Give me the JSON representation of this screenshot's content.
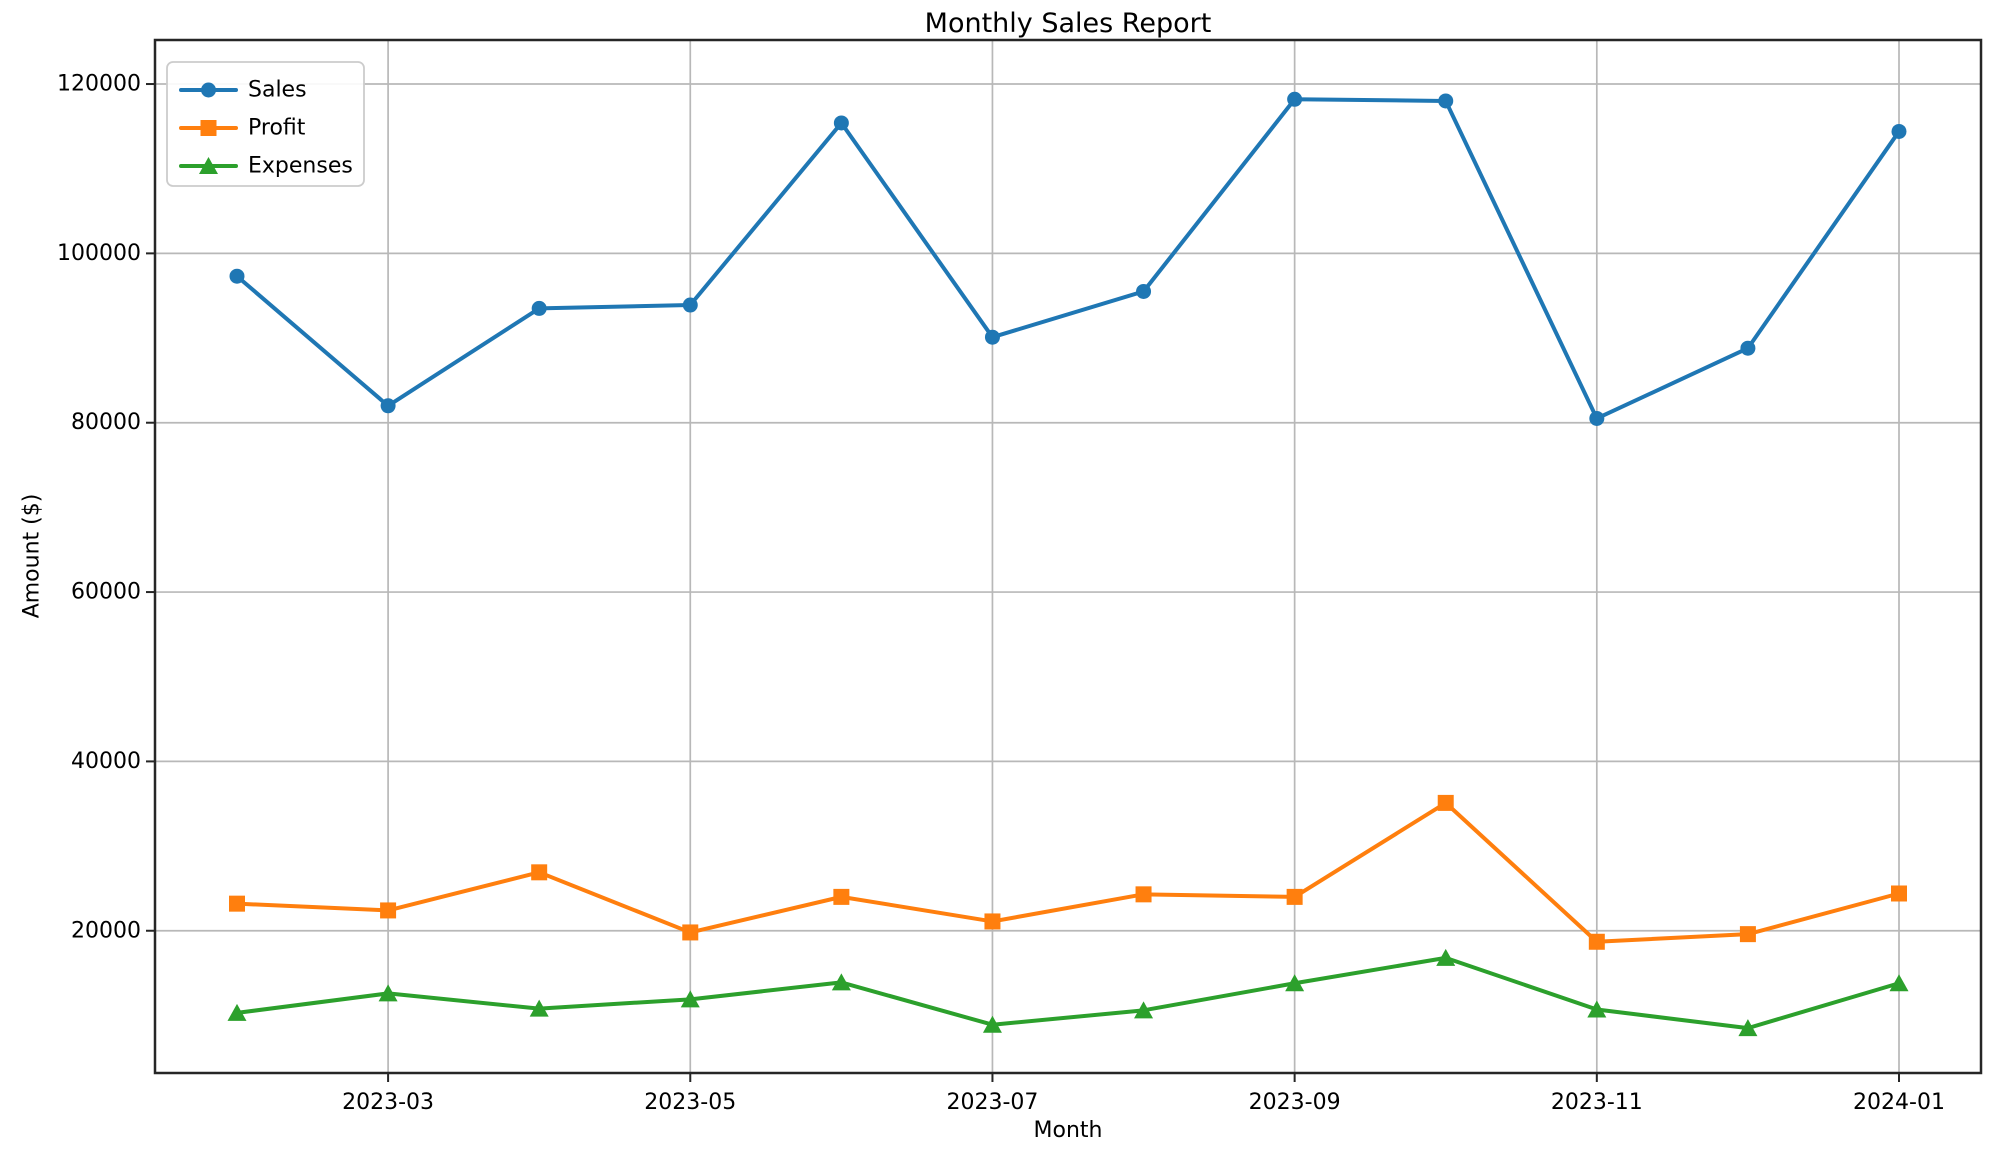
{
  "chart_data": {
    "type": "line",
    "title": "Monthly Sales Report",
    "xlabel": "Month",
    "ylabel": "Amount ($)",
    "x": [
      "2023-02",
      "2023-03",
      "2023-04",
      "2023-05",
      "2023-06",
      "2023-07",
      "2023-08",
      "2023-09",
      "2023-10",
      "2023-11",
      "2023-12",
      "2024-01"
    ],
    "x_tick_indices": [
      1,
      3,
      5,
      7,
      9,
      11
    ],
    "x_tick_labels": [
      "2023-03",
      "2023-05",
      "2023-07",
      "2023-09",
      "2023-11",
      "2024-01"
    ],
    "y_ticks": [
      20000,
      40000,
      60000,
      80000,
      100000,
      120000
    ],
    "y_tick_labels": [
      "20000",
      "40000",
      "60000",
      "80000",
      "100000",
      "120000"
    ],
    "ylim": [
      3200,
      125200
    ],
    "grid": true,
    "grid_color": "#b8b8b8",
    "spine_color": "#262626",
    "legend_position": "upper left",
    "series": [
      {
        "name": "Sales",
        "color": "#1f77b4",
        "marker": "circle",
        "values": [
          97300,
          82000,
          93500,
          93900,
          115400,
          90100,
          95500,
          118200,
          118000,
          80500,
          88800,
          114400
        ]
      },
      {
        "name": "Profit",
        "color": "#ff7f0e",
        "marker": "square",
        "values": [
          23200,
          22400,
          26900,
          19800,
          24000,
          21100,
          24300,
          24000,
          35100,
          18700,
          19600,
          24400
        ]
      },
      {
        "name": "Expenses",
        "color": "#2ca02c",
        "marker": "triangle",
        "values": [
          10300,
          12600,
          10800,
          11900,
          13900,
          8900,
          10600,
          13800,
          16800,
          10700,
          8500,
          13800
        ]
      }
    ]
  }
}
